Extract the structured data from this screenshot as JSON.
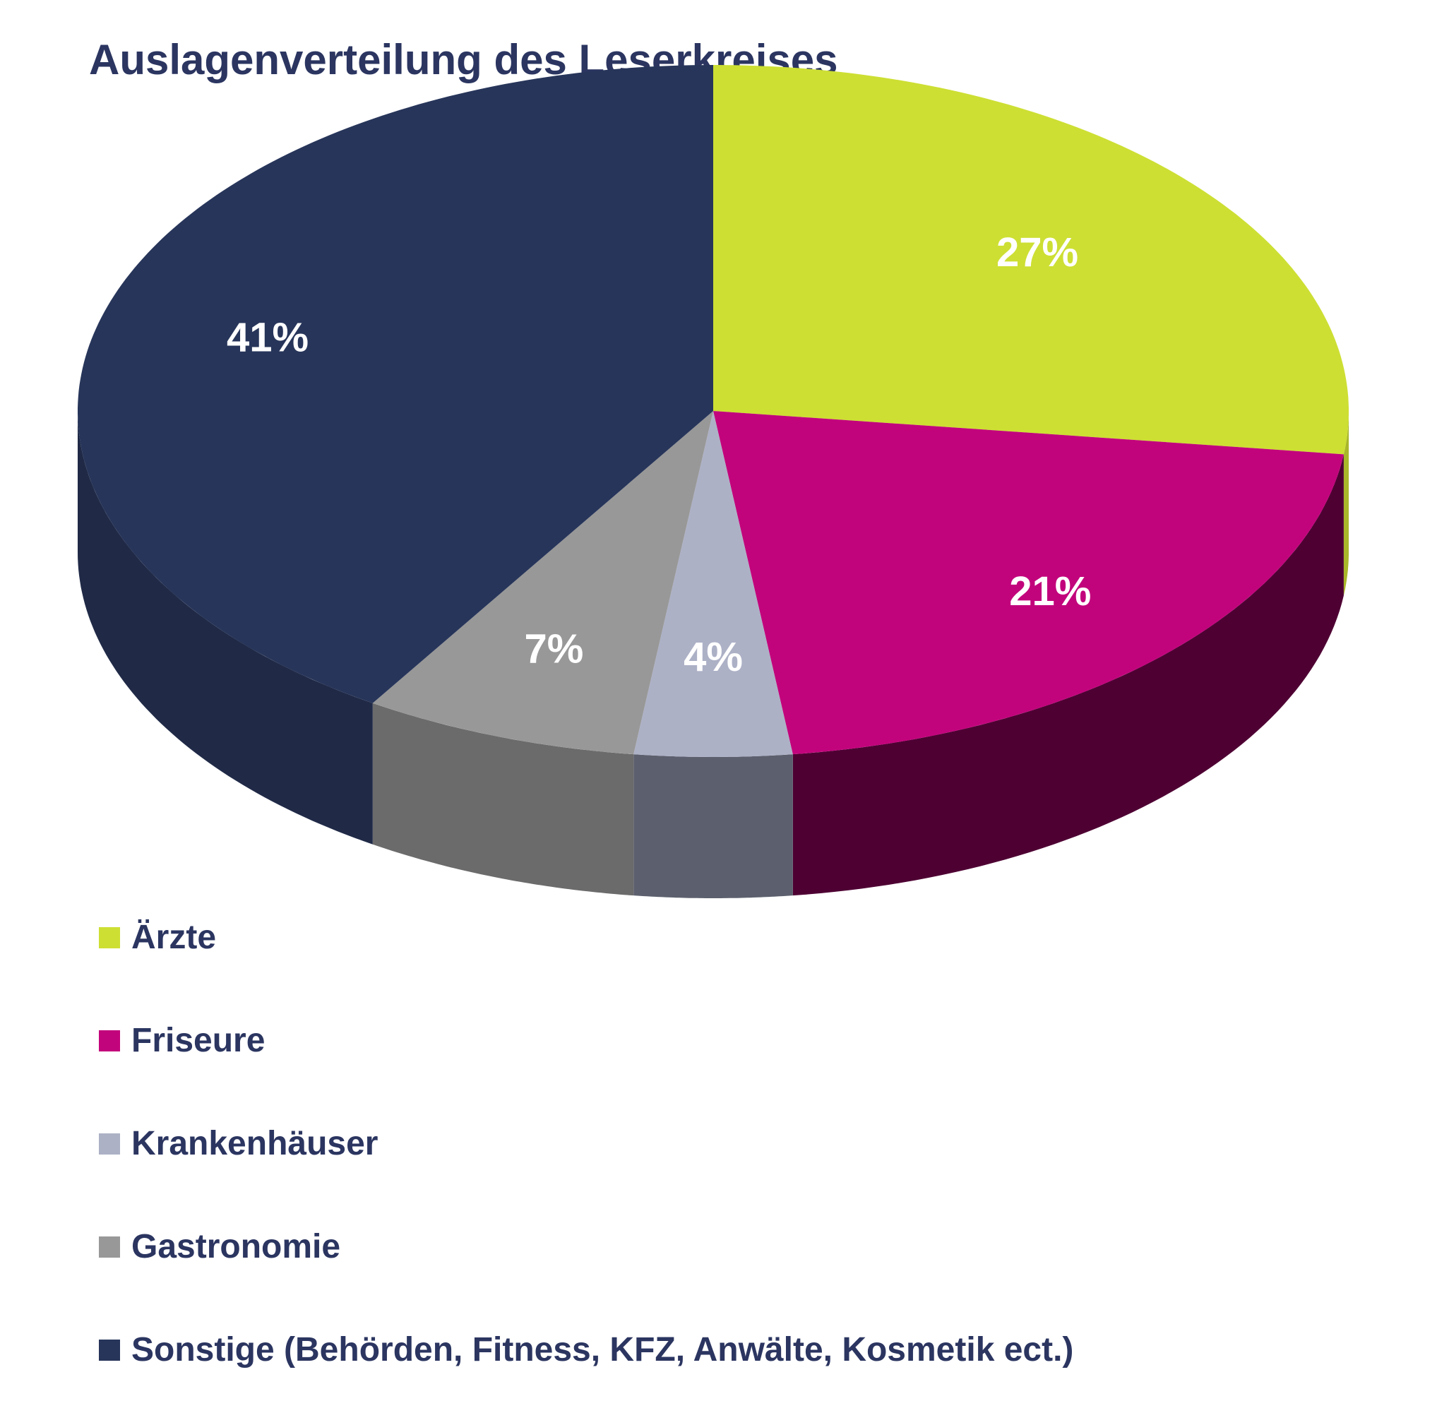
{
  "chart_data": {
    "type": "pie",
    "title": "Auslagenverteilung des Leserkreises",
    "slices": [
      {
        "label": "Ärzte",
        "value": 27,
        "value_label": "27%",
        "color": "#cddf33",
        "side_color": "#a9b72a"
      },
      {
        "label": "Friseure",
        "value": 21,
        "value_label": "21%",
        "color": "#c2047c",
        "side_color": "#4e0033"
      },
      {
        "label": "Krankenhäuser",
        "value": 4,
        "value_label": "4%",
        "color": "#adb1c6",
        "side_color": "#5c606e"
      },
      {
        "label": "Gastronomie",
        "value": 7,
        "value_label": "7%",
        "color": "#989898",
        "side_color": "#6b6b6b"
      },
      {
        "label": "Sonstige (Behörden, Fitness, KFZ, Anwälte, Kosmetik ect.)",
        "value": 41,
        "value_label": "41%",
        "color": "#27355a",
        "side_color": "#202a47"
      }
    ],
    "legend_placement": "bottom-left",
    "style": "3d"
  }
}
